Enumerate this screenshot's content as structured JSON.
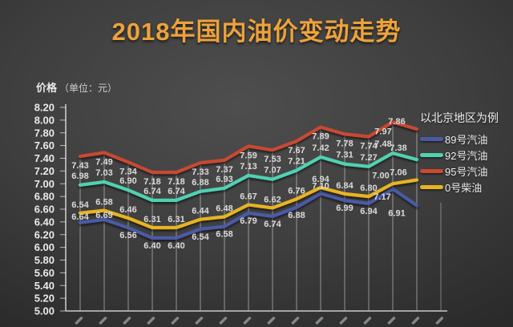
{
  "title": "2018年国内油价变动走势",
  "y_axis": {
    "label": "价格",
    "unit": "（单位：元）"
  },
  "legend": {
    "note": "以北京地区为例",
    "items": [
      {
        "label": "89号汽油",
        "color": "#4B5AA5"
      },
      {
        "label": "92号汽油",
        "color": "#50D1B2"
      },
      {
        "label": "95号汽油",
        "color": "#C74A33"
      },
      {
        "label": "0号柴油",
        "color": "#E6B422"
      }
    ]
  },
  "chart_data": {
    "type": "line",
    "title": "2018年国内油价变动走势",
    "ylabel": "价格（单位：元）",
    "ylim": [
      5.0,
      8.2
    ],
    "y_ticks": [
      "8.20",
      "8.00",
      "7.80",
      "7.60",
      "7.40",
      "7.20",
      "7.00",
      "6.80",
      "6.60",
      "6.40",
      "6.20",
      "6.00",
      "5.80",
      "5.60",
      "5.40",
      "5.20",
      "5.00"
    ],
    "x_points": 15,
    "grid": "vertical drop line at each data point",
    "legend_position": "right",
    "legend_note": "以北京地区为例",
    "series": [
      {
        "name": "89号汽油",
        "color": "#4B5AA5",
        "values": [
          6.64,
          6.69,
          6.56,
          6.4,
          6.4,
          6.54,
          6.58,
          6.79,
          6.74,
          6.88,
          7.1,
          6.99,
          6.94,
          7.17,
          6.91
        ]
      },
      {
        "name": "92号汽油",
        "color": "#50D1B2",
        "values": [
          6.98,
          7.03,
          6.9,
          6.74,
          6.74,
          6.88,
          6.93,
          7.13,
          7.07,
          7.21,
          7.42,
          7.31,
          7.27,
          7.48,
          7.38
        ]
      },
      {
        "name": "95号汽油",
        "color": "#C74A33",
        "values": [
          7.43,
          7.49,
          7.34,
          7.18,
          7.18,
          7.33,
          7.37,
          7.59,
          7.53,
          7.67,
          7.89,
          7.78,
          7.74,
          7.97,
          7.86
        ]
      },
      {
        "name": "0号柴油",
        "color": "#E6B422",
        "values": [
          6.54,
          6.58,
          6.46,
          6.31,
          6.31,
          6.44,
          6.48,
          6.67,
          6.62,
          6.76,
          6.94,
          6.84,
          6.8,
          7.0,
          7.06
        ]
      }
    ]
  }
}
